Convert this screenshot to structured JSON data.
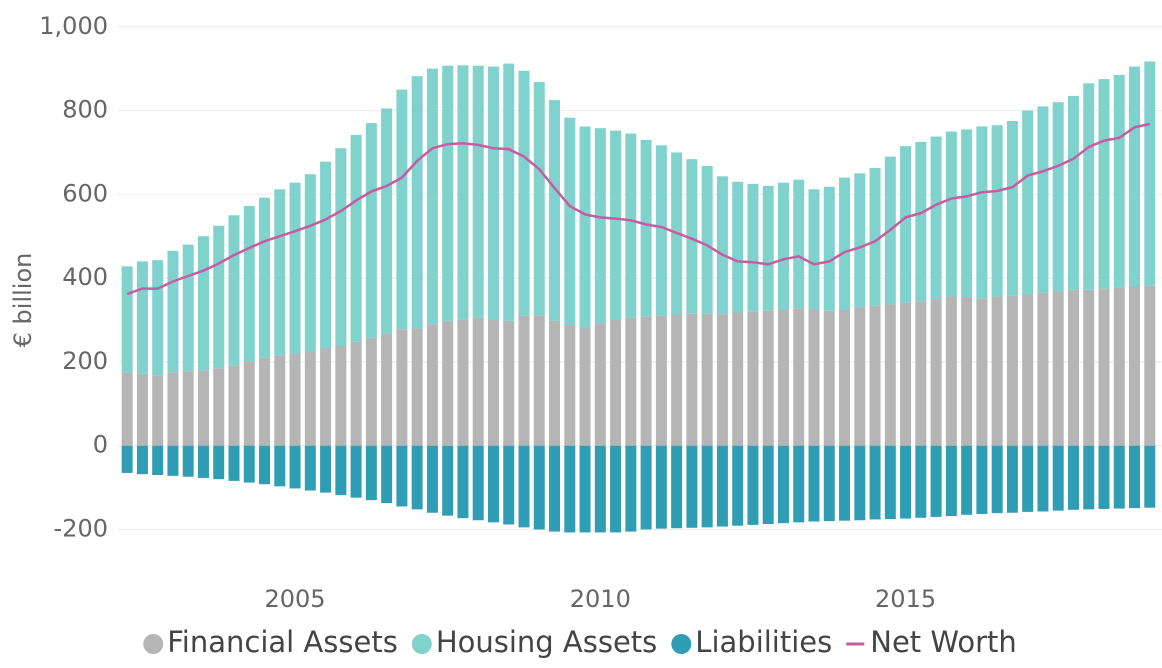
{
  "chart_data": {
    "type": "bar",
    "stacked": true,
    "y_label": "€ billion",
    "x": [
      2002.25,
      2002.5,
      2002.75,
      2003,
      2003.25,
      2003.5,
      2003.75,
      2004,
      2004.25,
      2004.5,
      2004.75,
      2005,
      2005.25,
      2005.5,
      2005.75,
      2006,
      2006.25,
      2006.5,
      2006.75,
      2007,
      2007.25,
      2007.5,
      2007.75,
      2008,
      2008.25,
      2008.5,
      2008.75,
      2009,
      2009.25,
      2009.5,
      2009.75,
      2010,
      2010.25,
      2010.5,
      2010.75,
      2011,
      2011.25,
      2011.5,
      2011.75,
      2012,
      2012.25,
      2012.5,
      2012.75,
      2013,
      2013.25,
      2013.5,
      2013.75,
      2014,
      2014.25,
      2014.5,
      2014.75,
      2015,
      2015.25,
      2015.5,
      2015.75,
      2016,
      2016.25,
      2016.5,
      2016.75,
      2017,
      2017.25,
      2017.5,
      2017.75,
      2018,
      2018.25,
      2018.5,
      2018.75,
      2019
    ],
    "xlim": [
      2002.1,
      2019.2
    ],
    "xticks": [
      2005,
      2010,
      2015
    ],
    "ylim": [
      -280,
      1040
    ],
    "yticks": [
      -200,
      0,
      200,
      400,
      600,
      800,
      {
        "value": 1000,
        "label": "1,000"
      }
    ],
    "grid": true,
    "legend": "bottom",
    "series": [
      {
        "name": "Financial Assets",
        "type": "bar",
        "color": "#b5b5b5",
        "values": [
          175,
          172,
          168,
          175,
          178,
          180,
          185,
          192,
          202,
          210,
          215,
          220,
          225,
          232,
          238,
          248,
          258,
          268,
          278,
          280,
          290,
          298,
          302,
          305,
          300,
          298,
          310,
          310,
          298,
          288,
          282,
          292,
          300,
          305,
          308,
          310,
          312,
          315,
          316,
          314,
          318,
          320,
          322,
          325,
          328,
          325,
          322,
          325,
          330,
          335,
          338,
          342,
          345,
          350,
          356,
          355,
          352,
          356,
          358,
          362,
          365,
          368,
          372,
          372,
          375,
          378,
          380,
          382
        ]
      },
      {
        "name": "Housing Assets",
        "type": "bar",
        "color": "#80d2cd",
        "values": [
          253,
          268,
          275,
          290,
          302,
          320,
          340,
          358,
          370,
          382,
          397,
          408,
          423,
          446,
          472,
          494,
          512,
          537,
          572,
          602,
          610,
          609,
          606,
          602,
          605,
          614,
          585,
          558,
          527,
          495,
          480,
          466,
          452,
          440,
          422,
          407,
          388,
          369,
          352,
          329,
          312,
          305,
          298,
          303,
          307,
          287,
          296,
          315,
          320,
          328,
          352,
          373,
          380,
          388,
          394,
          400,
          410,
          409,
          417,
          438,
          445,
          452,
          463,
          493,
          500,
          507,
          525,
          535
        ]
      },
      {
        "name": "Liabilities",
        "type": "bar",
        "color": "#2f9db3",
        "values": [
          -65,
          -68,
          -70,
          -72,
          -74,
          -77,
          -80,
          -84,
          -88,
          -92,
          -97,
          -102,
          -107,
          -112,
          -118,
          -124,
          -130,
          -137,
          -145,
          -152,
          -160,
          -167,
          -173,
          -178,
          -183,
          -188,
          -195,
          -200,
          -205,
          -207,
          -207,
          -207,
          -207,
          -205,
          -200,
          -198,
          -197,
          -196,
          -195,
          -193,
          -191,
          -189,
          -187,
          -185,
          -183,
          -181,
          -180,
          -179,
          -178,
          -176,
          -175,
          -174,
          -172,
          -170,
          -168,
          -165,
          -163,
          -161,
          -160,
          -158,
          -157,
          -155,
          -153,
          -152,
          -151,
          -150,
          -149,
          -148
        ]
      },
      {
        "name": "Net Worth",
        "type": "line",
        "color": "#c65ca2",
        "values": [
          362,
          375,
          375,
          392,
          405,
          418,
          435,
          455,
          472,
          488,
          500,
          512,
          525,
          540,
          560,
          585,
          607,
          620,
          640,
          680,
          710,
          720,
          722,
          718,
          710,
          708,
          690,
          660,
          615,
          572,
          552,
          545,
          542,
          538,
          528,
          522,
          508,
          494,
          478,
          456,
          440,
          438,
          433,
          445,
          452,
          433,
          440,
          462,
          473,
          488,
          515,
          545,
          555,
          575,
          590,
          595,
          605,
          608,
          617,
          645,
          655,
          668,
          685,
          713,
          728,
          735,
          760,
          768
        ]
      }
    ]
  }
}
